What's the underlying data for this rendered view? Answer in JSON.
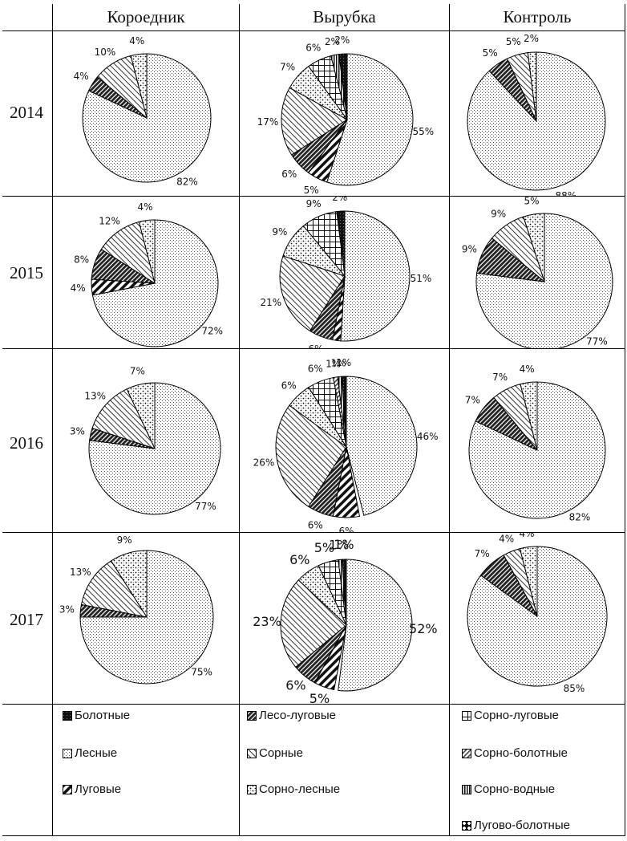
{
  "columns": [
    "Короедник",
    "Вырубка",
    "Контроль"
  ],
  "years": [
    "2014",
    "2015",
    "2016",
    "2017"
  ],
  "legend": [
    {
      "key": "bol",
      "label": "Болотные"
    },
    {
      "key": "les",
      "label": "Лесные"
    },
    {
      "key": "lug",
      "label": "Луговые"
    },
    {
      "key": "leslug",
      "label": "Лесо-луговые"
    },
    {
      "key": "sor",
      "label": "Сорные"
    },
    {
      "key": "sorles",
      "label": "Сорно-лесные"
    },
    {
      "key": "sorlug",
      "label": "Сорно-луговые"
    },
    {
      "key": "sorbol",
      "label": "Сорно-болотные"
    },
    {
      "key": "sorvod",
      "label": "Сорно-водные"
    },
    {
      "key": "lugbol",
      "label": "Лугово-болотные"
    }
  ],
  "chart_data": [
    {
      "type": "pie",
      "title": "Короедник 2014",
      "slices": [
        {
          "cat": "les",
          "value": 82,
          "label": "82%"
        },
        {
          "cat": "leslug",
          "value": 4,
          "label": "4%"
        },
        {
          "cat": "sor",
          "value": 10,
          "label": "10%"
        },
        {
          "cat": "sorles",
          "value": 4,
          "label": "4%"
        }
      ]
    },
    {
      "type": "pie",
      "title": "Вырубка 2014",
      "slices": [
        {
          "cat": "bol",
          "value": 2,
          "label": "2%"
        },
        {
          "cat": "les",
          "value": 55,
          "label": "55%"
        },
        {
          "cat": "lug",
          "value": 5,
          "label": "5%"
        },
        {
          "cat": "leslug",
          "value": 6,
          "label": "6%"
        },
        {
          "cat": "sor",
          "value": 17,
          "label": "17%"
        },
        {
          "cat": "sorles",
          "value": 7,
          "label": "7%"
        },
        {
          "cat": "sorlug",
          "value": 6,
          "label": "6%"
        },
        {
          "cat": "sorvod",
          "value": 2,
          "label": "2%"
        }
      ]
    },
    {
      "type": "pie",
      "title": "Контроль 2014",
      "slices": [
        {
          "cat": "les",
          "value": 88,
          "label": "88%"
        },
        {
          "cat": "leslug",
          "value": 5,
          "label": "5%"
        },
        {
          "cat": "sor",
          "value": 5,
          "label": "5%"
        },
        {
          "cat": "sorles",
          "value": 2,
          "label": "2%"
        }
      ]
    },
    {
      "type": "pie",
      "title": "Короедник 2015",
      "slices": [
        {
          "cat": "les",
          "value": 72,
          "label": "72%"
        },
        {
          "cat": "lug",
          "value": 4,
          "label": "4%"
        },
        {
          "cat": "leslug",
          "value": 8,
          "label": "8%"
        },
        {
          "cat": "sor",
          "value": 12,
          "label": "12%"
        },
        {
          "cat": "sorles",
          "value": 4,
          "label": "4%"
        }
      ]
    },
    {
      "type": "pie",
      "title": "Вырубка 2015",
      "slices": [
        {
          "cat": "bol",
          "value": 2,
          "label": "2%"
        },
        {
          "cat": "les",
          "value": 51,
          "label": "51%"
        },
        {
          "cat": "lug",
          "value": 2,
          "label": "2%"
        },
        {
          "cat": "leslug",
          "value": 6,
          "label": "6%"
        },
        {
          "cat": "sor",
          "value": 21,
          "label": "21%"
        },
        {
          "cat": "sorles",
          "value": 9,
          "label": "9%"
        },
        {
          "cat": "sorlug",
          "value": 9,
          "label": "9%"
        }
      ]
    },
    {
      "type": "pie",
      "title": "Контроль 2015",
      "slices": [
        {
          "cat": "les",
          "value": 77,
          "label": "77%"
        },
        {
          "cat": "leslug",
          "value": 9,
          "label": "9%"
        },
        {
          "cat": "sor",
          "value": 9,
          "label": "9%"
        },
        {
          "cat": "sorles",
          "value": 5,
          "label": "5%"
        }
      ]
    },
    {
      "type": "pie",
      "title": "Короедник 2016",
      "slices": [
        {
          "cat": "les",
          "value": 77,
          "label": "77%"
        },
        {
          "cat": "leslug",
          "value": 3,
          "label": "3%"
        },
        {
          "cat": "sor",
          "value": 13,
          "label": "13%"
        },
        {
          "cat": "sorles",
          "value": 7,
          "label": "7%"
        }
      ]
    },
    {
      "type": "pie",
      "title": "Вырубка 2016",
      "slices": [
        {
          "cat": "bol",
          "value": 1,
          "label": "1%"
        },
        {
          "cat": "les",
          "value": 46,
          "label": "46%"
        },
        {
          "cat": "lug",
          "value": 6,
          "label": "6%"
        },
        {
          "cat": "leslug",
          "value": 6,
          "label": "6%"
        },
        {
          "cat": "sor",
          "value": 26,
          "label": "26%"
        },
        {
          "cat": "sorles",
          "value": 6,
          "label": "6%"
        },
        {
          "cat": "sorlug",
          "value": 6,
          "label": "6%"
        },
        {
          "cat": "sorbol",
          "value": 1,
          "label": "1%"
        },
        {
          "cat": "sorvod",
          "value": 1,
          "label": "1%"
        }
      ]
    },
    {
      "type": "pie",
      "title": "Контроль 2016",
      "slices": [
        {
          "cat": "les",
          "value": 82,
          "label": "82%"
        },
        {
          "cat": "leslug",
          "value": 7,
          "label": "7%"
        },
        {
          "cat": "sor",
          "value": 7,
          "label": "7%"
        },
        {
          "cat": "sorles",
          "value": 4,
          "label": "4%"
        }
      ]
    },
    {
      "type": "pie",
      "title": "Короедник 2017",
      "slices": [
        {
          "cat": "les",
          "value": 75,
          "label": "75%"
        },
        {
          "cat": "leslug",
          "value": 3,
          "label": "3%"
        },
        {
          "cat": "sor",
          "value": 13,
          "label": "13%"
        },
        {
          "cat": "sorles",
          "value": 9,
          "label": "9%"
        }
      ]
    },
    {
      "type": "pie",
      "title": "Вырубка 2017",
      "slices": [
        {
          "cat": "bol",
          "value": 1,
          "label": "1%"
        },
        {
          "cat": "les",
          "value": 52,
          "label": "52%"
        },
        {
          "cat": "lug",
          "value": 5,
          "label": "5%"
        },
        {
          "cat": "leslug",
          "value": 6,
          "label": "6%"
        },
        {
          "cat": "sor",
          "value": 23,
          "label": "23%"
        },
        {
          "cat": "sorles",
          "value": 6,
          "label": "6%"
        },
        {
          "cat": "sorlug",
          "value": 5,
          "label": "5%"
        },
        {
          "cat": "sorvod",
          "value": 1,
          "label": "1%"
        }
      ]
    },
    {
      "type": "pie",
      "title": "Контроль 2017",
      "slices": [
        {
          "cat": "les",
          "value": 85,
          "label": "85%"
        },
        {
          "cat": "leslug",
          "value": 7,
          "label": "7%"
        },
        {
          "cat": "sor",
          "value": 4,
          "label": "4%"
        },
        {
          "cat": "sorles",
          "value": 4,
          "label": "4%"
        }
      ]
    }
  ]
}
